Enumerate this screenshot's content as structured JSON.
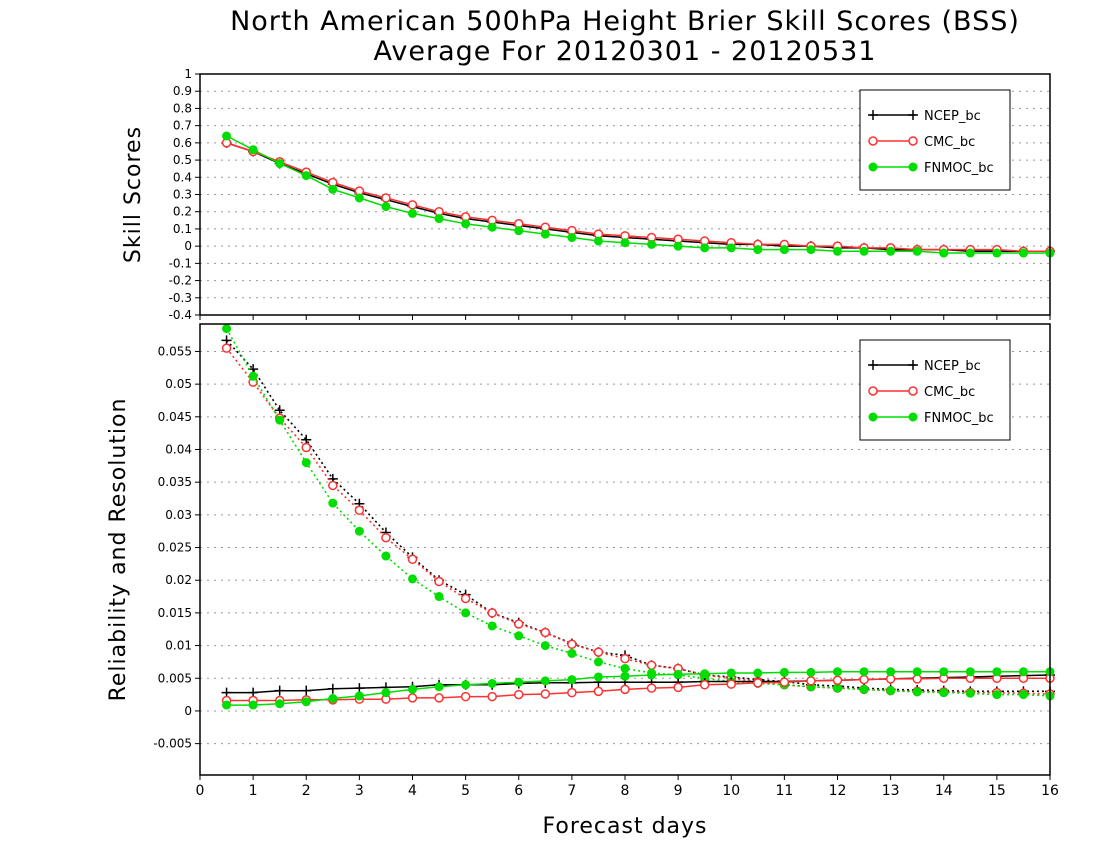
{
  "colors": {
    "NCEP_bc": "#000000",
    "CMC_bc": "#ff3030",
    "FNMOC_bc": "#00dd00",
    "grid": "#999999"
  },
  "chart_data": [
    {
      "type": "line",
      "title": "North American 500hPa Height Brier Skill Scores (BSS)",
      "subtitle": "Average For 20120301 - 20120531",
      "xlabel": "",
      "ylabel": "Skill Scores",
      "xlim": [
        0,
        16
      ],
      "ylim": [
        -0.4,
        1
      ],
      "yticks": [
        "-0.4",
        "-0.3",
        "-0.2",
        "-0.1",
        "0",
        "0.1",
        "0.2",
        "0.3",
        "0.4",
        "0.5",
        "0.6",
        "0.7",
        "0.8",
        "0.9",
        "1"
      ],
      "grid": true,
      "legend_position": "top-right",
      "x": [
        0.5,
        1,
        1.5,
        2,
        2.5,
        3,
        3.5,
        4,
        4.5,
        5,
        5.5,
        6,
        6.5,
        7,
        7.5,
        8,
        8.5,
        9,
        9.5,
        10,
        10.5,
        11,
        11.5,
        12,
        12.5,
        13,
        13.5,
        14,
        14.5,
        15,
        15.5,
        16
      ],
      "series": [
        {
          "name": "NCEP_bc",
          "marker": "plus",
          "line": "solid",
          "values": [
            0.6,
            0.55,
            0.48,
            0.42,
            0.36,
            0.31,
            0.27,
            0.23,
            0.19,
            0.16,
            0.14,
            0.12,
            0.1,
            0.08,
            0.06,
            0.05,
            0.04,
            0.03,
            0.02,
            0.01,
            0.01,
            0.0,
            0.0,
            -0.01,
            -0.01,
            -0.02,
            -0.02,
            -0.02,
            -0.03,
            -0.03,
            -0.03,
            -0.03
          ]
        },
        {
          "name": "CMC_bc",
          "marker": "open-circle",
          "line": "solid",
          "values": [
            0.6,
            0.55,
            0.49,
            0.43,
            0.37,
            0.32,
            0.28,
            0.24,
            0.2,
            0.17,
            0.15,
            0.13,
            0.11,
            0.09,
            0.07,
            0.06,
            0.05,
            0.04,
            0.03,
            0.02,
            0.01,
            0.01,
            0.0,
            0.0,
            -0.01,
            -0.01,
            -0.02,
            -0.02,
            -0.02,
            -0.02,
            -0.03,
            -0.03
          ]
        },
        {
          "name": "FNMOC_bc",
          "marker": "filled-circle",
          "line": "solid",
          "values": [
            0.64,
            0.56,
            0.48,
            0.41,
            0.33,
            0.28,
            0.23,
            0.19,
            0.16,
            0.13,
            0.11,
            0.09,
            0.07,
            0.05,
            0.03,
            0.02,
            0.01,
            0.0,
            -0.01,
            -0.01,
            -0.02,
            -0.02,
            -0.02,
            -0.03,
            -0.03,
            -0.03,
            -0.03,
            -0.04,
            -0.04,
            -0.04,
            -0.04,
            -0.04
          ]
        }
      ]
    },
    {
      "type": "line",
      "xlabel": "Forecast days",
      "ylabel": "Reliability and Resolution",
      "xlim": [
        0,
        16
      ],
      "ylim": [
        -0.0098,
        0.0592
      ],
      "yticks": [
        "-0.005",
        "0",
        "0.005",
        "0.01",
        "0.015",
        "0.02",
        "0.025",
        "0.03",
        "0.035",
        "0.04",
        "0.045",
        "0.05",
        "0.055"
      ],
      "xticks": [
        "0",
        "1",
        "2",
        "3",
        "4",
        "5",
        "6",
        "7",
        "8",
        "9",
        "10",
        "11",
        "12",
        "13",
        "14",
        "15",
        "16"
      ],
      "grid": true,
      "legend_position": "top-right",
      "legend": [
        "NCEP_bc",
        "CMC_bc",
        "FNMOC_bc"
      ],
      "x": [
        0.5,
        1,
        1.5,
        2,
        2.5,
        3,
        3.5,
        4,
        4.5,
        5,
        5.5,
        6,
        6.5,
        7,
        7.5,
        8,
        8.5,
        9,
        9.5,
        10,
        10.5,
        11,
        11.5,
        12,
        12.5,
        13,
        13.5,
        14,
        14.5,
        15,
        15.5,
        16
      ],
      "series": [
        {
          "name": "NCEP_bc resolution",
          "marker": "plus",
          "line": "dotted",
          "color": "NCEP_bc",
          "values": [
            0.0567,
            0.0523,
            0.046,
            0.0415,
            0.0355,
            0.0317,
            0.0273,
            0.0235,
            0.02,
            0.0178,
            0.015,
            0.0135,
            0.012,
            0.0103,
            0.009,
            0.0085,
            0.007,
            0.0065,
            0.0055,
            0.0052,
            0.0048,
            0.0045,
            0.004,
            0.0038,
            0.0035,
            0.0033,
            0.0032,
            0.0031,
            0.003,
            0.003,
            0.003,
            0.003
          ]
        },
        {
          "name": "CMC_bc resolution",
          "marker": "open-circle",
          "line": "dotted",
          "color": "CMC_bc",
          "values": [
            0.0555,
            0.0503,
            0.0448,
            0.0403,
            0.0345,
            0.0307,
            0.0265,
            0.0232,
            0.0198,
            0.0172,
            0.015,
            0.0133,
            0.012,
            0.0102,
            0.009,
            0.008,
            0.007,
            0.0065,
            0.0055,
            0.005,
            0.0045,
            0.004,
            0.0037,
            0.0035,
            0.0033,
            0.0031,
            0.003,
            0.0029,
            0.0028,
            0.0028,
            0.0027,
            0.0026
          ]
        },
        {
          "name": "FNMOC_bc resolution",
          "marker": "filled-circle",
          "line": "dotted",
          "color": "FNMOC_bc",
          "values": [
            0.0585,
            0.0512,
            0.0445,
            0.038,
            0.0318,
            0.0275,
            0.0237,
            0.0202,
            0.0175,
            0.015,
            0.013,
            0.0115,
            0.01,
            0.0088,
            0.0075,
            0.0065,
            0.0058,
            0.0055,
            0.005,
            0.0045,
            0.0042,
            0.004,
            0.0037,
            0.0035,
            0.0033,
            0.0031,
            0.0029,
            0.0028,
            0.0027,
            0.0025,
            0.0025,
            0.0023
          ]
        },
        {
          "name": "NCEP_bc reliability",
          "marker": "plus",
          "line": "solid",
          "color": "NCEP_bc",
          "values": [
            0.0028,
            0.0028,
            0.0031,
            0.0031,
            0.0034,
            0.0035,
            0.0036,
            0.0037,
            0.004,
            0.004,
            0.004,
            0.0042,
            0.0043,
            0.0043,
            0.0044,
            0.0044,
            0.0044,
            0.0044,
            0.0045,
            0.0045,
            0.0045,
            0.0045,
            0.0046,
            0.0047,
            0.0048,
            0.0049,
            0.005,
            0.0051,
            0.0052,
            0.0053,
            0.0054,
            0.0055
          ]
        },
        {
          "name": "CMC_bc reliability",
          "marker": "open-circle",
          "line": "solid",
          "color": "CMC_bc",
          "values": [
            0.0016,
            0.0016,
            0.0016,
            0.0017,
            0.0017,
            0.0018,
            0.0018,
            0.002,
            0.002,
            0.0022,
            0.0022,
            0.0025,
            0.0026,
            0.0028,
            0.003,
            0.0033,
            0.0035,
            0.0036,
            0.004,
            0.0041,
            0.0043,
            0.0044,
            0.0046,
            0.0047,
            0.0048,
            0.0049,
            0.0049,
            0.005,
            0.005,
            0.005,
            0.005,
            0.005
          ]
        },
        {
          "name": "FNMOC_bc reliability",
          "marker": "filled-circle",
          "line": "solid",
          "color": "FNMOC_bc",
          "values": [
            0.0009,
            0.0009,
            0.0011,
            0.0014,
            0.0019,
            0.0023,
            0.0028,
            0.0033,
            0.0037,
            0.004,
            0.0042,
            0.0044,
            0.0046,
            0.0048,
            0.0052,
            0.0053,
            0.0055,
            0.0056,
            0.0057,
            0.0058,
            0.0058,
            0.0059,
            0.0059,
            0.006,
            0.006,
            0.006,
            0.006,
            0.006,
            0.006,
            0.006,
            0.006,
            0.006
          ]
        }
      ]
    }
  ]
}
